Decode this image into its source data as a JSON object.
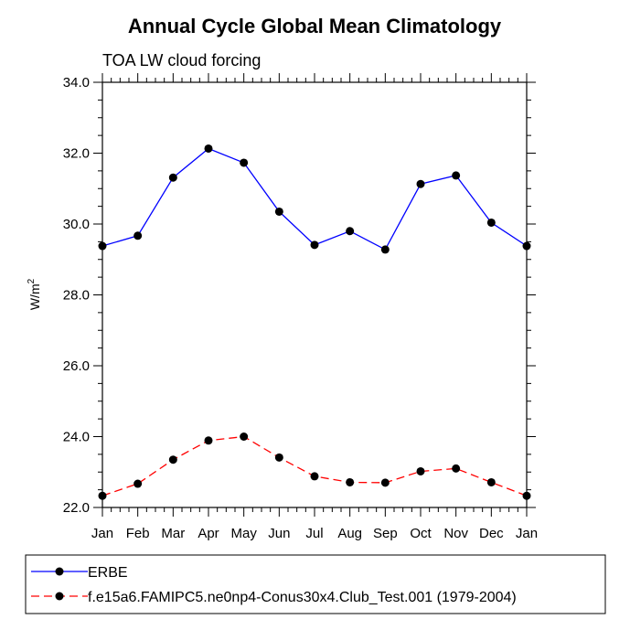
{
  "chart_data": {
    "type": "line",
    "title": "Annual Cycle Global Mean Climatology",
    "subtitle": "TOA LW cloud forcing",
    "ylabel": "W/m",
    "ylabel_sup": "2",
    "xlabel": "",
    "categories": [
      "Jan",
      "Feb",
      "Mar",
      "Apr",
      "May",
      "Jun",
      "Jul",
      "Aug",
      "Sep",
      "Oct",
      "Nov",
      "Dec",
      "Jan"
    ],
    "ylim": [
      22.0,
      34.0
    ],
    "yticks": [
      "22.0",
      "24.0",
      "26.0",
      "28.0",
      "30.0",
      "32.0",
      "34.0"
    ],
    "series": [
      {
        "name": "ERBE",
        "color": "#0000ff",
        "dashed": false,
        "values": [
          29.38,
          29.67,
          31.31,
          32.13,
          31.73,
          30.35,
          29.41,
          29.8,
          29.28,
          31.13,
          31.37,
          30.04,
          29.38
        ]
      },
      {
        "name": "f.e15a6.FAMIPC5.ne0np4-Conus30x4.Club_Test.001 (1979-2004)",
        "color": "#ff0000",
        "dashed": true,
        "values": [
          22.33,
          22.67,
          23.35,
          23.89,
          24.0,
          23.41,
          22.88,
          22.71,
          22.7,
          23.02,
          23.1,
          22.71,
          22.33
        ]
      }
    ]
  }
}
